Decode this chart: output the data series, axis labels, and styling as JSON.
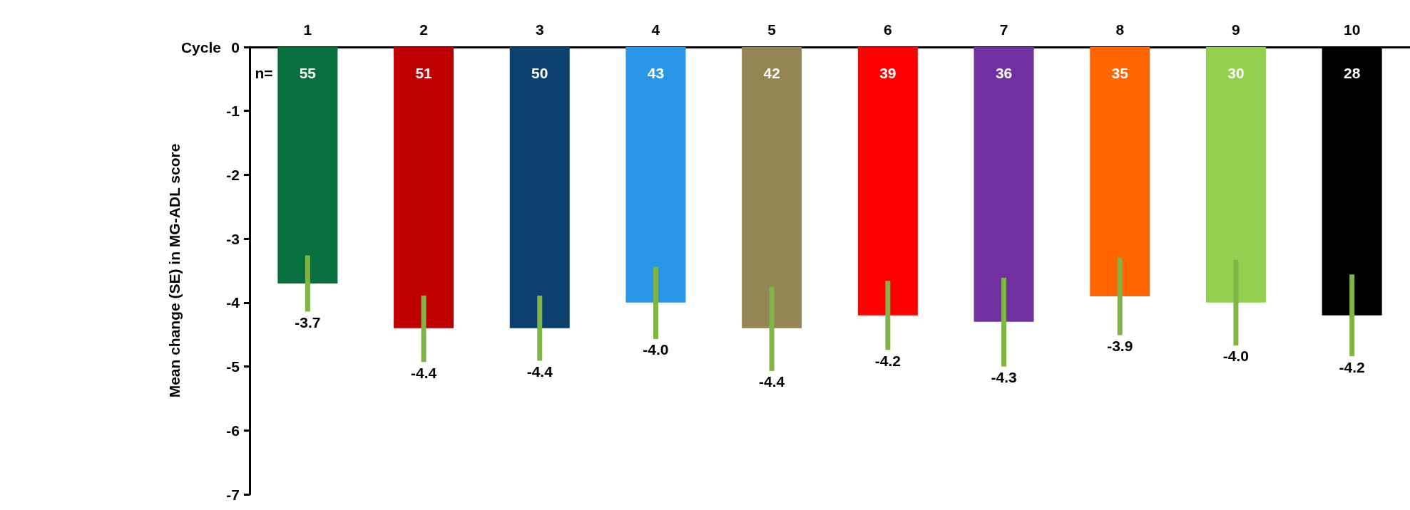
{
  "chart_data": {
    "type": "bar",
    "xlabel": "Cycle",
    "ylabel": "Mean change (SE) in MG-ADL score",
    "categories": [
      "1",
      "2",
      "3",
      "4",
      "5",
      "6",
      "7",
      "8",
      "9",
      "10"
    ],
    "values": [
      -3.7,
      -4.4,
      -4.4,
      -4.0,
      -4.4,
      -4.2,
      -4.3,
      -3.9,
      -4.0,
      -4.2
    ],
    "colors": [
      "#08703e",
      "#c00000",
      "#0b416e",
      "#2a96e8",
      "#948554",
      "#ff0000",
      "#7030a0",
      "#ff6600",
      "#92d050",
      "#000000"
    ],
    "errors": [
      [
        -4.14,
        -3.26
      ],
      [
        -4.93,
        -3.89
      ],
      [
        -4.91,
        -3.89
      ],
      [
        -4.57,
        -3.44
      ],
      [
        -5.07,
        -3.75
      ],
      [
        -4.74,
        -3.66
      ],
      [
        -5.0,
        -3.61
      ],
      [
        -4.51,
        -3.3
      ],
      [
        -4.67,
        -3.33
      ],
      [
        -4.84,
        -3.56
      ]
    ],
    "value_labels": [
      "-3.7",
      "-4.4",
      "-4.4",
      "-4.0",
      "-4.4",
      "-4.2",
      "-4.3",
      "-3.9",
      "-4.0",
      "-4.2"
    ],
    "ylim": [
      -7,
      0
    ],
    "yticks": [
      0,
      -1,
      -2,
      -3,
      -4,
      -5,
      -6,
      -7
    ],
    "grid": false,
    "annotations": [
      "n=",
      "55",
      "51",
      "50",
      "43",
      "42",
      "39",
      "36",
      "35",
      "30",
      "28"
    ]
  }
}
